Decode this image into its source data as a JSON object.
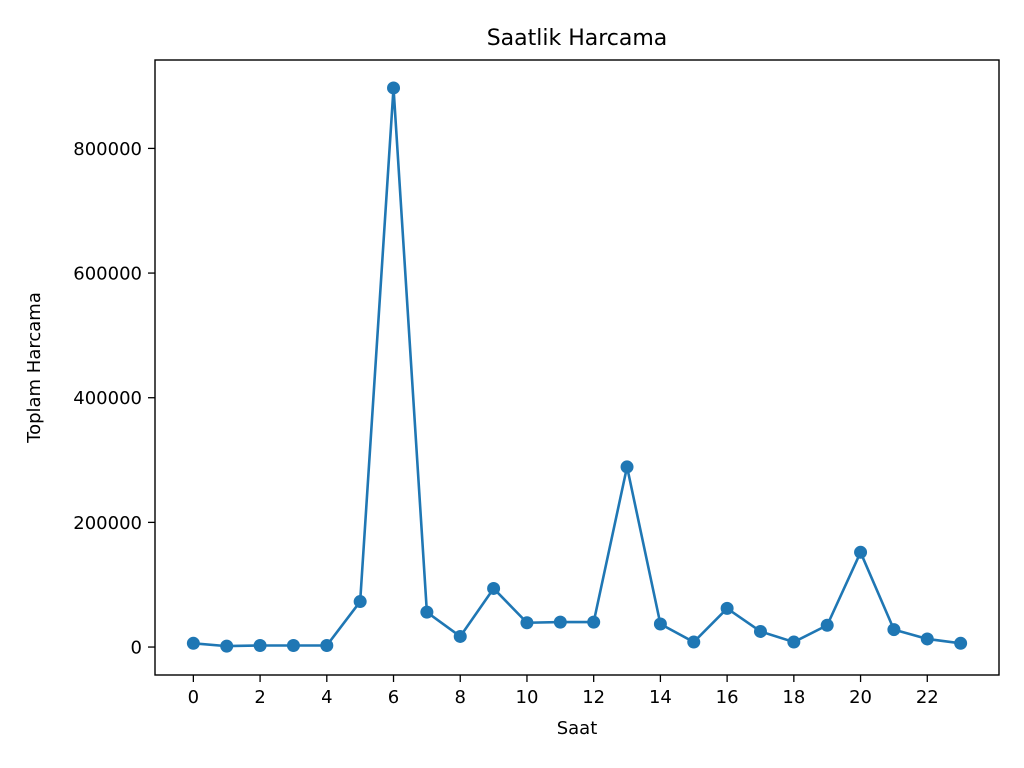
{
  "chart_data": {
    "type": "line",
    "title": "Saatlik Harcama",
    "xlabel": "Saat",
    "ylabel": "Toplam Harcama",
    "x": [
      0,
      1,
      2,
      3,
      4,
      5,
      6,
      7,
      8,
      9,
      10,
      11,
      12,
      13,
      14,
      15,
      16,
      17,
      18,
      19,
      20,
      21,
      22,
      23
    ],
    "series": [
      {
        "name": "",
        "color": "#1f77b4",
        "marker": "circle",
        "values": [
          6000,
          1500,
          2500,
          2500,
          2500,
          73000,
          897000,
          56000,
          17000,
          94000,
          39000,
          40000,
          40000,
          289000,
          37000,
          8000,
          62000,
          25000,
          8000,
          35000,
          152000,
          28000,
          13000,
          6000
        ]
      }
    ],
    "xlim": [
      -1.15,
      24.15
    ],
    "ylim": [
      -44850,
      941850
    ],
    "xticks": [
      0,
      2,
      4,
      6,
      8,
      10,
      12,
      14,
      16,
      18,
      20,
      22
    ],
    "xtick_labels": [
      "0",
      "2",
      "4",
      "6",
      "8",
      "10",
      "12",
      "14",
      "16",
      "18",
      "20",
      "22"
    ],
    "yticks": [
      0,
      200000,
      400000,
      600000,
      800000
    ],
    "ytick_labels": [
      "0",
      "200000",
      "400000",
      "600000",
      "800000"
    ],
    "grid": false,
    "legend": "none"
  }
}
